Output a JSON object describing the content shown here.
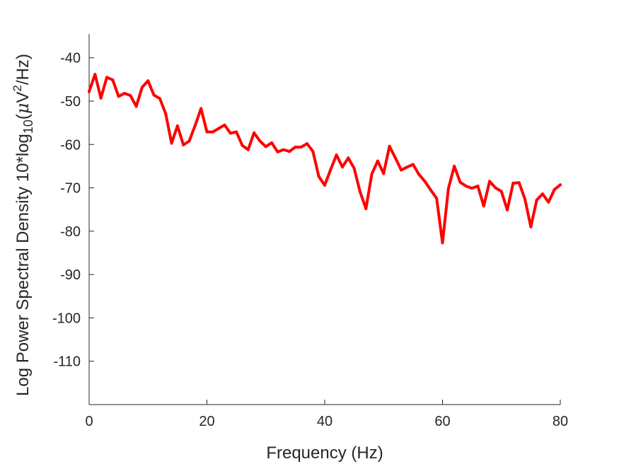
{
  "chart_data": {
    "type": "line",
    "title": "",
    "xlabel": "Frequency (Hz)",
    "ylabel": {
      "prefix": "Log Power Spectral Density 10*log",
      "sub": "10",
      "open": "(",
      "mu": "μ",
      "unit": "V",
      "sup": "2",
      "tail": "/Hz)"
    },
    "xlim": [
      0,
      80
    ],
    "ylim": [
      -120,
      -34.5
    ],
    "xticks": [
      0,
      20,
      40,
      60,
      80
    ],
    "xtick_labels": [
      "0",
      "20",
      "40",
      "60",
      "80"
    ],
    "yticks": [
      -110,
      -100,
      -90,
      -80,
      -70,
      -60,
      -50,
      -40
    ],
    "ytick_labels": [
      "-110",
      "-100",
      "-90",
      "-80",
      "-70",
      "-60",
      "-50",
      "-40"
    ],
    "grid": false,
    "legend": null,
    "line_color": "#ff0000",
    "axis_color": "#262626",
    "series": [
      {
        "x": [
          0,
          1,
          2,
          3,
          4,
          5,
          6,
          7,
          8,
          9,
          10,
          11,
          12,
          13,
          14,
          15,
          16,
          17,
          18,
          19,
          20,
          21,
          22,
          23,
          24,
          25,
          26,
          27,
          28,
          29,
          30,
          31,
          32,
          33,
          34,
          35,
          36,
          37,
          38,
          39,
          40,
          41,
          42,
          43,
          44,
          45,
          46,
          47,
          48,
          49,
          50,
          51,
          52,
          53,
          54,
          55,
          56,
          57,
          58,
          59,
          60,
          61,
          62,
          63,
          64,
          65,
          66,
          67,
          68,
          69,
          70,
          71,
          72,
          73,
          74,
          75,
          76,
          77,
          78,
          79,
          80
        ],
        "values": [
          -47.8,
          -43.8,
          -49.3,
          -44.5,
          -45.1,
          -48.9,
          -48.2,
          -48.7,
          -51.2,
          -46.8,
          -45.3,
          -48.6,
          -49.4,
          -52.9,
          -59.7,
          -55.7,
          -60.1,
          -59.2,
          -55.6,
          -51.7,
          -57.1,
          -57.1,
          -56.3,
          -55.5,
          -57.4,
          -57.1,
          -60.2,
          -61.2,
          -57.3,
          -59.2,
          -60.5,
          -59.6,
          -61.7,
          -61.2,
          -61.6,
          -60.6,
          -60.6,
          -59.8,
          -61.6,
          -67.4,
          -69.4,
          -65.8,
          -62.4,
          -65.2,
          -63.1,
          -65.5,
          -70.9,
          -74.8,
          -66.8,
          -63.8,
          -66.7,
          -60.4,
          -63.1,
          -65.9,
          -65.2,
          -64.6,
          -66.9,
          -68.5,
          -70.5,
          -72.4,
          -82.7,
          -70.2,
          -65.0,
          -68.7,
          -69.6,
          -70.1,
          -69.6,
          -74.2,
          -68.5,
          -70.0,
          -70.8,
          -75.1,
          -68.9,
          -68.8,
          -72.6,
          -79.0,
          -72.8,
          -71.4,
          -73.3,
          -70.4,
          -69.3
        ]
      }
    ]
  }
}
